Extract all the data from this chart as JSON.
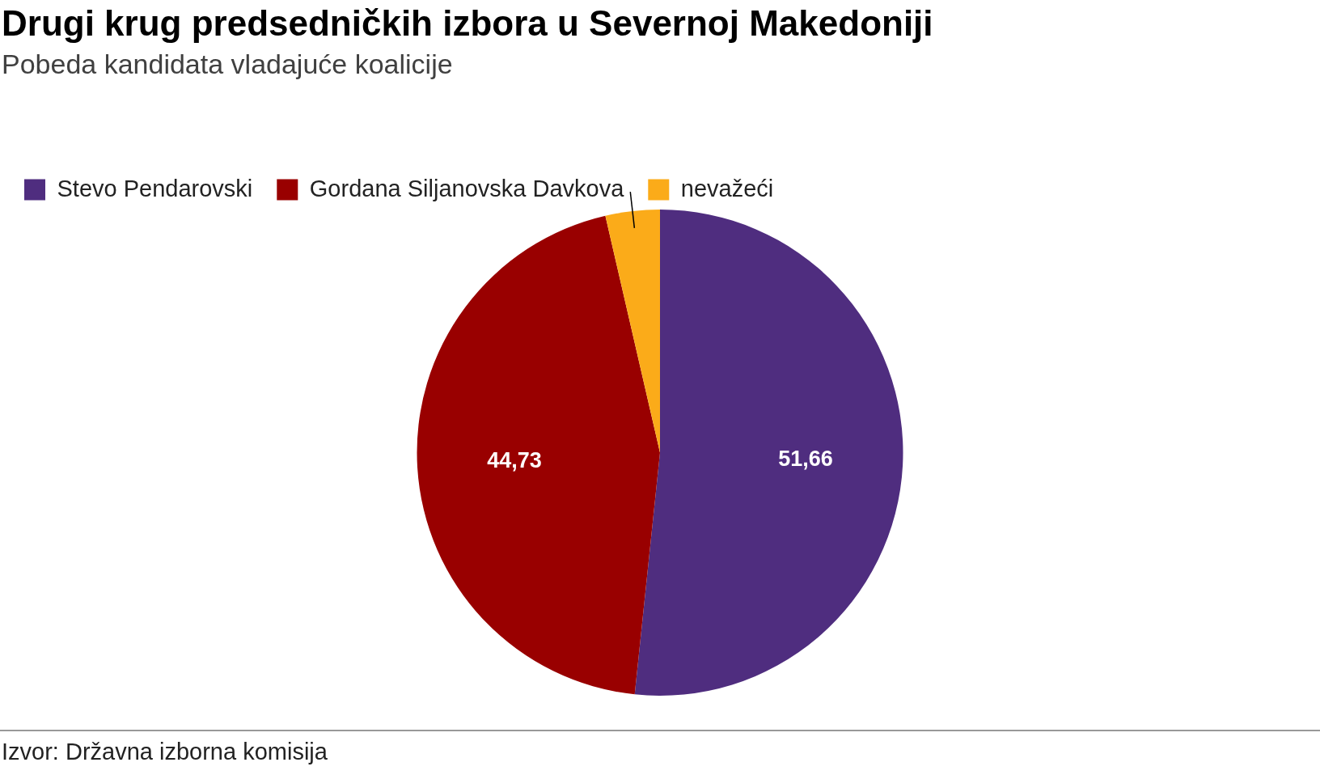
{
  "chart_data": {
    "type": "pie",
    "title": "Drugi krug predsedničkih izbora u Severnoj Makedoniji",
    "subtitle": "Pobeda kandidata vladajuće koalicije",
    "categories": [
      "Stevo Pendarovski",
      "Gordana Siljanovska Davkova",
      "nevažeći"
    ],
    "values": [
      51.66,
      44.73,
      3.61
    ],
    "colors": [
      "#4f2d7f",
      "#990000",
      "#fbab19"
    ],
    "value_labels": [
      "51,66",
      "44,73",
      null
    ],
    "legend": "top left",
    "annotations": [
      "Izvor: Državna izborna komisija"
    ]
  }
}
